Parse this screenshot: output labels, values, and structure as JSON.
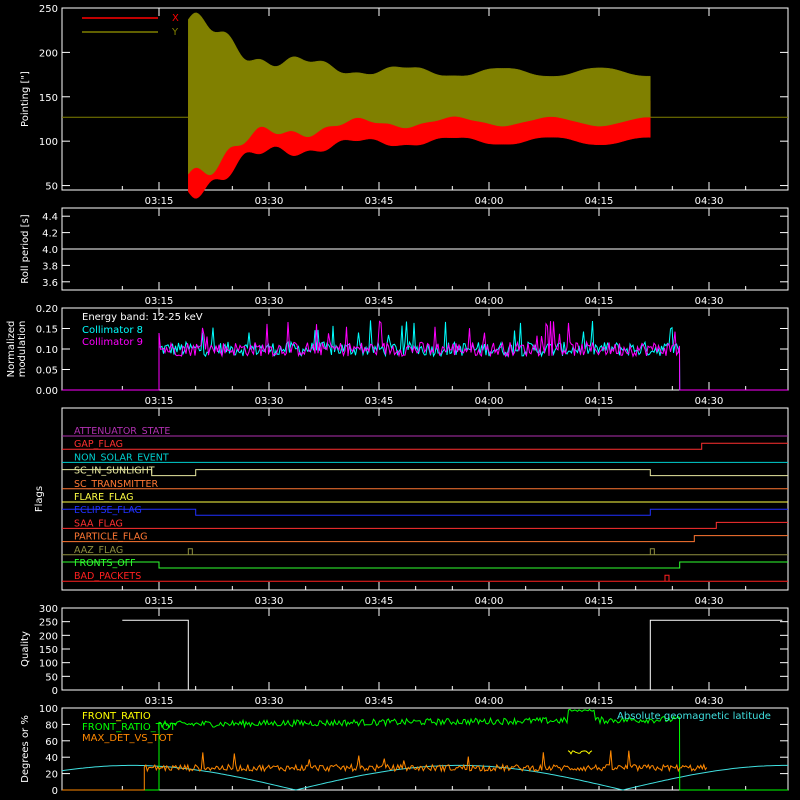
{
  "chart_data": [
    {
      "type": "line",
      "panel": "pointing",
      "ylabel": "Pointing [\"]",
      "ylim": [
        45,
        250
      ],
      "yticks": [
        "50",
        "100",
        "150",
        "200",
        "250"
      ],
      "xticks": [
        "03:15",
        "03:30",
        "03:45",
        "04:00",
        "04:15",
        "04:30"
      ],
      "legend_placement": "top-left",
      "series": [
        {
          "name": "X",
          "color": "#ff0000",
          "x_start": "03:19",
          "x_end": "04:22",
          "center": 125,
          "amp_start": 60,
          "amp_mid": 22,
          "amp_end": 25
        },
        {
          "name": "Y",
          "color": "#808000",
          "x_start": "03:19",
          "x_end": "04:22",
          "center": 150,
          "amp_start": 62,
          "amp_mid": 25,
          "amp_end": 28
        }
      ],
      "baseline": 127
    },
    {
      "type": "line",
      "panel": "roll",
      "ylabel": "Roll period [s]",
      "ylim": [
        3.5,
        4.5
      ],
      "yticks": [
        "3.6",
        "3.8",
        "4.0",
        "4.2",
        "4.4"
      ],
      "xticks": [
        "03:15",
        "03:30",
        "03:45",
        "04:00",
        "04:15",
        "04:30"
      ],
      "series": [
        {
          "name": "",
          "color": "#ffffff",
          "value": 4.0
        }
      ]
    },
    {
      "type": "line",
      "panel": "modulation",
      "ylabel": "Normalized modulation",
      "ylim": [
        0,
        0.2
      ],
      "yticks": [
        "0.00",
        "0.05",
        "0.10",
        "0.15",
        "0.20"
      ],
      "xticks": [
        "03:15",
        "03:30",
        "03:45",
        "04:00",
        "04:15",
        "04:30"
      ],
      "annotation": "Energy band: 12-25 keV",
      "series": [
        {
          "name": "Collimator 8",
          "color": "#00ffff",
          "x_start": "03:15",
          "x_end": "04:26",
          "mean": 0.1
        },
        {
          "name": "Collimator 9",
          "color": "#ff00ff",
          "x_start": "03:15",
          "x_end": "04:26",
          "mean": 0.1
        }
      ]
    },
    {
      "type": "line",
      "panel": "flags",
      "ylabel": "Flags",
      "xticks": [
        "03:15",
        "03:30",
        "03:45",
        "04:00",
        "04:15",
        "04:30"
      ],
      "flags": [
        {
          "name": "ATTENUATOR_STATE",
          "color": "#b030b0",
          "steps": []
        },
        {
          "name": "GAP_FLAG",
          "color": "#ff3030",
          "steps": [
            [
              "04:29",
              1
            ]
          ]
        },
        {
          "name": "NON_SOLAR_EVENT",
          "color": "#00d0d0",
          "steps": []
        },
        {
          "name": "SC_IN_SUNLIGHT",
          "color": "#e8e8a0",
          "init": 1,
          "steps": [
            [
              "03:14",
              0
            ],
            [
              "03:20",
              1
            ],
            [
              "04:22",
              0
            ]
          ]
        },
        {
          "name": "SC_TRANSMITTER",
          "color": "#ff7733",
          "steps": []
        },
        {
          "name": "FLARE_FLAG",
          "color": "#ffff44",
          "steps": []
        },
        {
          "name": "ECLIPSE_FLAG",
          "color": "#2030ff",
          "init": 1,
          "steps": [
            [
              "03:20",
              0
            ],
            [
              "04:22",
              1
            ]
          ]
        },
        {
          "name": "SAA_FLAG",
          "color": "#ff3030",
          "steps": [
            [
              "04:31",
              1
            ]
          ]
        },
        {
          "name": "PARTICLE_FLAG",
          "color": "#ff7733",
          "steps": [
            [
              "04:28",
              1
            ]
          ]
        },
        {
          "name": "AAZ_FLAG",
          "color": "#909040",
          "pulses": [
            "03:19",
            "04:22"
          ]
        },
        {
          "name": "FRONTS_OFF",
          "color": "#30ff30",
          "init": 1,
          "steps": [
            [
              "03:15",
              0
            ],
            [
              "04:26",
              1
            ]
          ]
        },
        {
          "name": "BAD_PACKETS",
          "color": "#ff2020",
          "pulses": [
            "04:24"
          ]
        }
      ]
    },
    {
      "type": "line",
      "panel": "quality",
      "ylabel": "Quality",
      "ylim": [
        0,
        300
      ],
      "yticks": [
        "0",
        "50",
        "100",
        "150",
        "200",
        "250",
        "300"
      ],
      "xticks": [
        "03:15",
        "03:30",
        "03:45",
        "04:00",
        "04:15",
        "04:30"
      ],
      "series": [
        {
          "name": "",
          "color": "#ffffff",
          "segments": [
            [
              "03:10",
              "03:19",
              255
            ],
            [
              "03:19",
              "04:22",
              0
            ],
            [
              "04:22",
              "04:40",
              255
            ]
          ]
        }
      ]
    },
    {
      "type": "line",
      "panel": "ratios",
      "ylabel": "Degrees or %",
      "ylim": [
        0,
        100
      ],
      "yticks": [
        "0",
        "20",
        "40",
        "60",
        "80",
        "100"
      ],
      "series": [
        {
          "name": "FRONT_RATIO",
          "color": "#ffff00"
        },
        {
          "name": "FRONT_RATIO_TOT",
          "color": "#00ff00"
        },
        {
          "name": "MAX_DET_VS_TOT",
          "color": "#ff8800"
        },
        {
          "name": "Absolute geomagnetic latitude",
          "color": "#40e0e0"
        }
      ]
    }
  ]
}
